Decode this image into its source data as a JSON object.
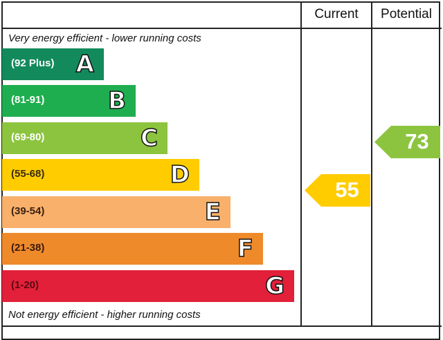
{
  "chart_data": {
    "type": "bar",
    "header": {
      "current": "Current",
      "potential": "Potential"
    },
    "top_note": "Very energy efficient - lower running costs",
    "bottom_note": "Not energy efficient - higher running costs",
    "bands": [
      {
        "letter": "A",
        "range": "(92 Plus)",
        "color": "#138a5c",
        "text_color": "#ffffff"
      },
      {
        "letter": "B",
        "range": "(81-91)",
        "color": "#1fae4f",
        "text_color": "#ffffff"
      },
      {
        "letter": "C",
        "range": "(69-80)",
        "color": "#8cc43f",
        "text_color": "#ffffff"
      },
      {
        "letter": "D",
        "range": "(55-68)",
        "color": "#ffcc00",
        "text_color": "#3a2a10"
      },
      {
        "letter": "E",
        "range": "(39-54)",
        "color": "#f8b06b",
        "text_color": "#3a2010"
      },
      {
        "letter": "F",
        "range": "(21-38)",
        "color": "#ef8a2b",
        "text_color": "#3a1a10"
      },
      {
        "letter": "G",
        "range": "(1-20)",
        "color": "#e2203a",
        "text_color": "#5a0a10"
      }
    ],
    "current": {
      "value": "55",
      "band": "D",
      "color": "#ffcc00"
    },
    "potential": {
      "value": "73",
      "band": "C",
      "color": "#8cc43f"
    }
  }
}
